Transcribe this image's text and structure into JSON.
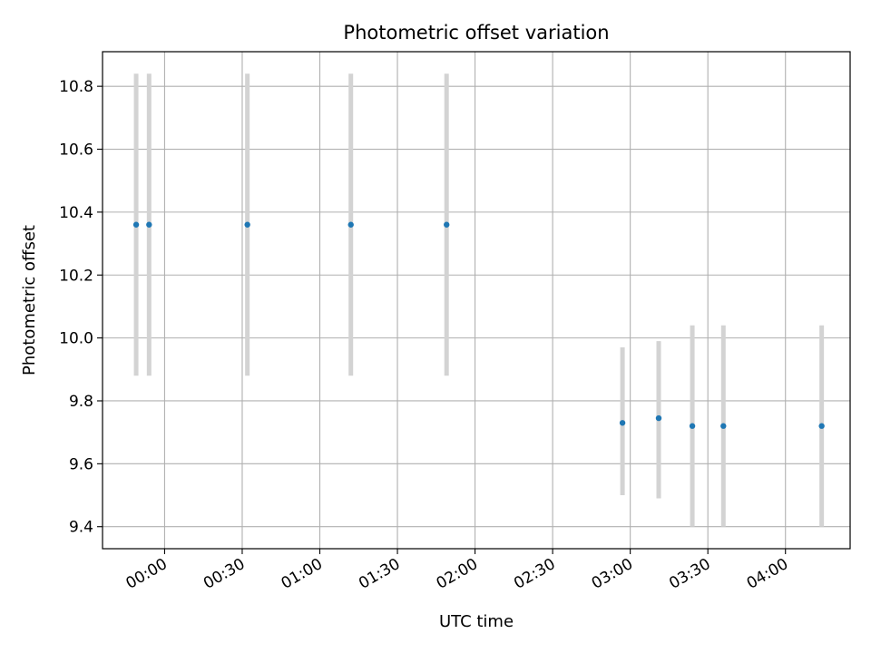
{
  "chart_data": {
    "type": "scatter",
    "title": "Photometric offset variation",
    "xlabel": "UTC time",
    "ylabel": "Photometric offset",
    "x_tick_labels": [
      "00:00",
      "00:30",
      "01:00",
      "01:30",
      "02:00",
      "02:30",
      "03:00",
      "03:30",
      "04:00"
    ],
    "y_tick_labels": [
      "9.4",
      "9.6",
      "9.8",
      "10.0",
      "10.2",
      "10.4",
      "10.6",
      "10.8"
    ],
    "x_ticks": [
      "00:00",
      "00:30",
      "01:00",
      "01:30",
      "02:00",
      "02:30",
      "03:00",
      "03:30",
      "04:00"
    ],
    "y_ticks": [
      9.4,
      9.6,
      9.8,
      10.0,
      10.2,
      10.4,
      10.6,
      10.8
    ],
    "xlim": [
      "23:36",
      "04:25"
    ],
    "ylim": [
      9.33,
      10.91
    ],
    "grid": true,
    "points": [
      {
        "x": "23:49",
        "y": 10.36,
        "err_low": 9.88,
        "err_high": 10.84
      },
      {
        "x": "23:54",
        "y": 10.36,
        "err_low": 9.88,
        "err_high": 10.84
      },
      {
        "x": "00:32",
        "y": 10.36,
        "err_low": 9.88,
        "err_high": 10.84
      },
      {
        "x": "01:12",
        "y": 10.36,
        "err_low": 9.88,
        "err_high": 10.84
      },
      {
        "x": "01:49",
        "y": 10.36,
        "err_low": 9.88,
        "err_high": 10.84
      },
      {
        "x": "02:57",
        "y": 9.73,
        "err_low": 9.5,
        "err_high": 9.97
      },
      {
        "x": "03:11",
        "y": 9.745,
        "err_low": 9.49,
        "err_high": 9.99
      },
      {
        "x": "03:24",
        "y": 9.72,
        "err_low": 9.4,
        "err_high": 10.04
      },
      {
        "x": "03:36",
        "y": 9.72,
        "err_low": 9.4,
        "err_high": 10.04
      },
      {
        "x": "04:14",
        "y": 9.72,
        "err_low": 9.4,
        "err_high": 10.04
      }
    ],
    "colors": {
      "point": "#1f77b4",
      "errorbar": "#d3d3d3",
      "grid": "#b0b0b0",
      "axes": "#000000"
    }
  }
}
